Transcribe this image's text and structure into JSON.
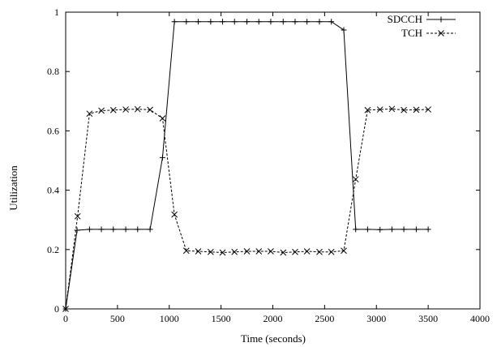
{
  "chart_data": {
    "type": "line",
    "title": "",
    "xlabel": "Time (seconds)",
    "ylabel": "Utilization",
    "xlim": [
      0,
      4000
    ],
    "ylim": [
      0,
      1
    ],
    "x_ticks": [
      "0",
      "500",
      "1000",
      "1500",
      "2000",
      "2500",
      "3000",
      "3500",
      "4000"
    ],
    "y_ticks": [
      "0",
      "0.2",
      "0.4",
      "0.6",
      "0.8",
      "1"
    ],
    "grid": false,
    "legend_position": "top-right",
    "series": [
      {
        "name": "SDCCH",
        "marker": "plus",
        "line_style": "solid",
        "color": "#000000",
        "x": [
          0,
          110,
          230,
          345,
          460,
          580,
          695,
          815,
          935,
          1050,
          1165,
          1280,
          1400,
          1515,
          1630,
          1750,
          1865,
          1980,
          2100,
          2215,
          2330,
          2450,
          2565,
          2685,
          2800,
          2915,
          3035,
          3150,
          3265,
          3385,
          3500
        ],
        "y": [
          0,
          0.265,
          0.268,
          0.268,
          0.268,
          0.268,
          0.268,
          0.268,
          0.51,
          0.968,
          0.968,
          0.968,
          0.968,
          0.968,
          0.968,
          0.968,
          0.968,
          0.968,
          0.968,
          0.968,
          0.968,
          0.968,
          0.968,
          0.94,
          0.268,
          0.268,
          0.267,
          0.268,
          0.268,
          0.268,
          0.268
        ]
      },
      {
        "name": "TCH",
        "marker": "x",
        "line_style": "dashed",
        "color": "#000000",
        "x": [
          0,
          115,
          230,
          345,
          460,
          580,
          695,
          815,
          935,
          1050,
          1165,
          1280,
          1400,
          1515,
          1630,
          1750,
          1865,
          1980,
          2100,
          2215,
          2330,
          2450,
          2565,
          2685,
          2800,
          2915,
          3035,
          3150,
          3265,
          3385,
          3500
        ],
        "y": [
          0,
          0.312,
          0.658,
          0.668,
          0.67,
          0.672,
          0.673,
          0.671,
          0.642,
          0.318,
          0.196,
          0.194,
          0.192,
          0.19,
          0.192,
          0.194,
          0.194,
          0.194,
          0.19,
          0.192,
          0.194,
          0.192,
          0.192,
          0.196,
          0.437,
          0.67,
          0.672,
          0.674,
          0.67,
          0.671,
          0.672
        ]
      }
    ]
  }
}
